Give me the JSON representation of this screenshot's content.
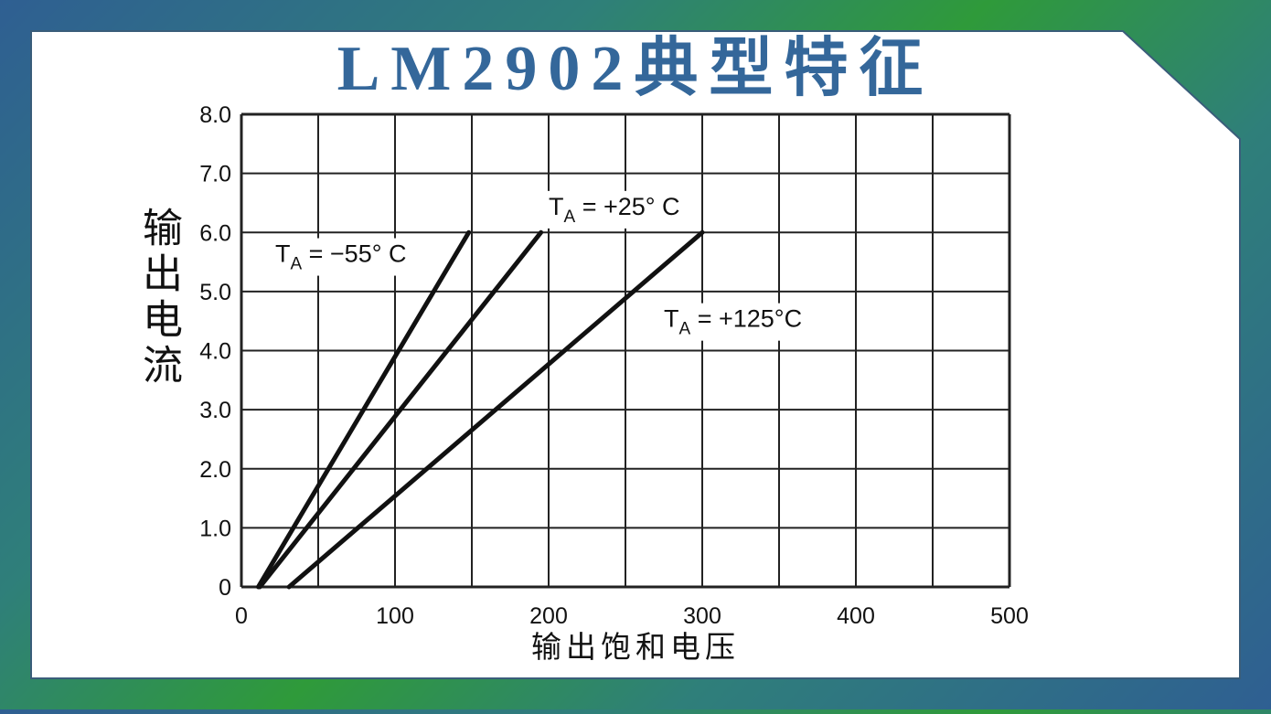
{
  "background": {
    "frame_colors": [
      "#2f5f92",
      "#2f9a3a"
    ],
    "card_color": "#ffffff"
  },
  "chart_data": {
    "type": "line",
    "title": "LM2902典型特征",
    "xlabel": "输出饱和电压",
    "ylabel": "输出电流",
    "xlim": [
      0,
      500
    ],
    "ylim": [
      0,
      8
    ],
    "x_ticks": [
      0,
      100,
      200,
      300,
      400,
      500
    ],
    "x_tick_labels": [
      "0",
      "100",
      "200",
      "300",
      "400",
      "500"
    ],
    "y_ticks": [
      0,
      1,
      2,
      3,
      4,
      5,
      6,
      7,
      8
    ],
    "y_tick_labels": [
      "0",
      "1.0",
      "2.0",
      "3.0",
      "4.0",
      "5.0",
      "6.0",
      "7.0",
      "8.0"
    ],
    "grid": true,
    "grid_x_step": 50,
    "series": [
      {
        "name": "TA = −55° C",
        "label_main": "T",
        "label_sub": "A",
        "label_rest": " = −55° C",
        "x": [
          11,
          148
        ],
        "y": [
          0,
          6.0
        ]
      },
      {
        "name": "TA = +25° C",
        "label_main": "T",
        "label_sub": "A",
        "label_rest": " = +25° C",
        "x": [
          12,
          195
        ],
        "y": [
          0,
          6.0
        ]
      },
      {
        "name": "TA = +125°C",
        "label_main": "T",
        "label_sub": "A",
        "label_rest": " = +125°C",
        "x": [
          31,
          300
        ],
        "y": [
          0,
          6.0
        ]
      }
    ]
  }
}
